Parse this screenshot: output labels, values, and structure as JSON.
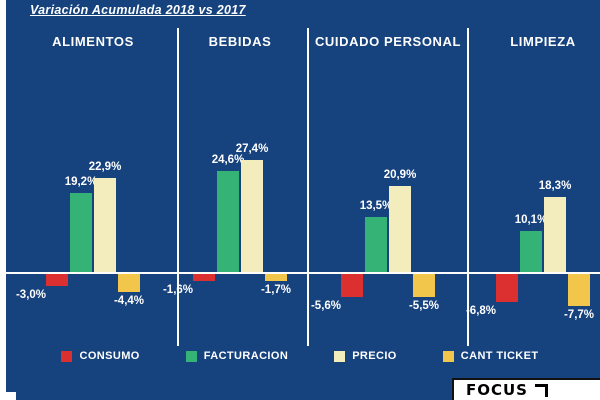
{
  "title": "Variación Acumulada 2018 vs 2017",
  "chart_data": {
    "type": "bar",
    "title": "Variación Acumulada 2018 vs 2017",
    "categories": [
      "ALIMENTOS",
      "BEBIDAS",
      "CUIDADO PERSONAL",
      "LIMPIEZA"
    ],
    "series": [
      {
        "name": "CONSUMO",
        "color": "#dc2f2f",
        "values": [
          -3.0,
          -1.6,
          -5.6,
          -6.8
        ],
        "labels": [
          "-3,0%",
          "-1,6%",
          "-5,6%",
          "-6,8%"
        ]
      },
      {
        "name": "FACTURACION",
        "color": "#35b376",
        "values": [
          19.2,
          24.6,
          13.5,
          10.1
        ],
        "labels": [
          "19,2%",
          "24,6%",
          "13,5%",
          "10,1%"
        ]
      },
      {
        "name": "PRECIO",
        "color": "#f3edbe",
        "values": [
          22.9,
          27.4,
          20.9,
          18.3
        ],
        "labels": [
          "22,9%",
          "27,4%",
          "20,9%",
          "18,3%"
        ]
      },
      {
        "name": "CANT TICKET",
        "color": "#f2c64b",
        "values": [
          -4.4,
          -1.7,
          -5.5,
          -7.7
        ],
        "labels": [
          "-4,4%",
          "-1,7%",
          "-5,5%",
          "-7,7%"
        ]
      }
    ],
    "ylim": [
      -10,
      30
    ],
    "legend_position": "bottom",
    "background": "#16427e",
    "axis_color": "#ffffff"
  },
  "logo": {
    "text": "FOCUS"
  }
}
